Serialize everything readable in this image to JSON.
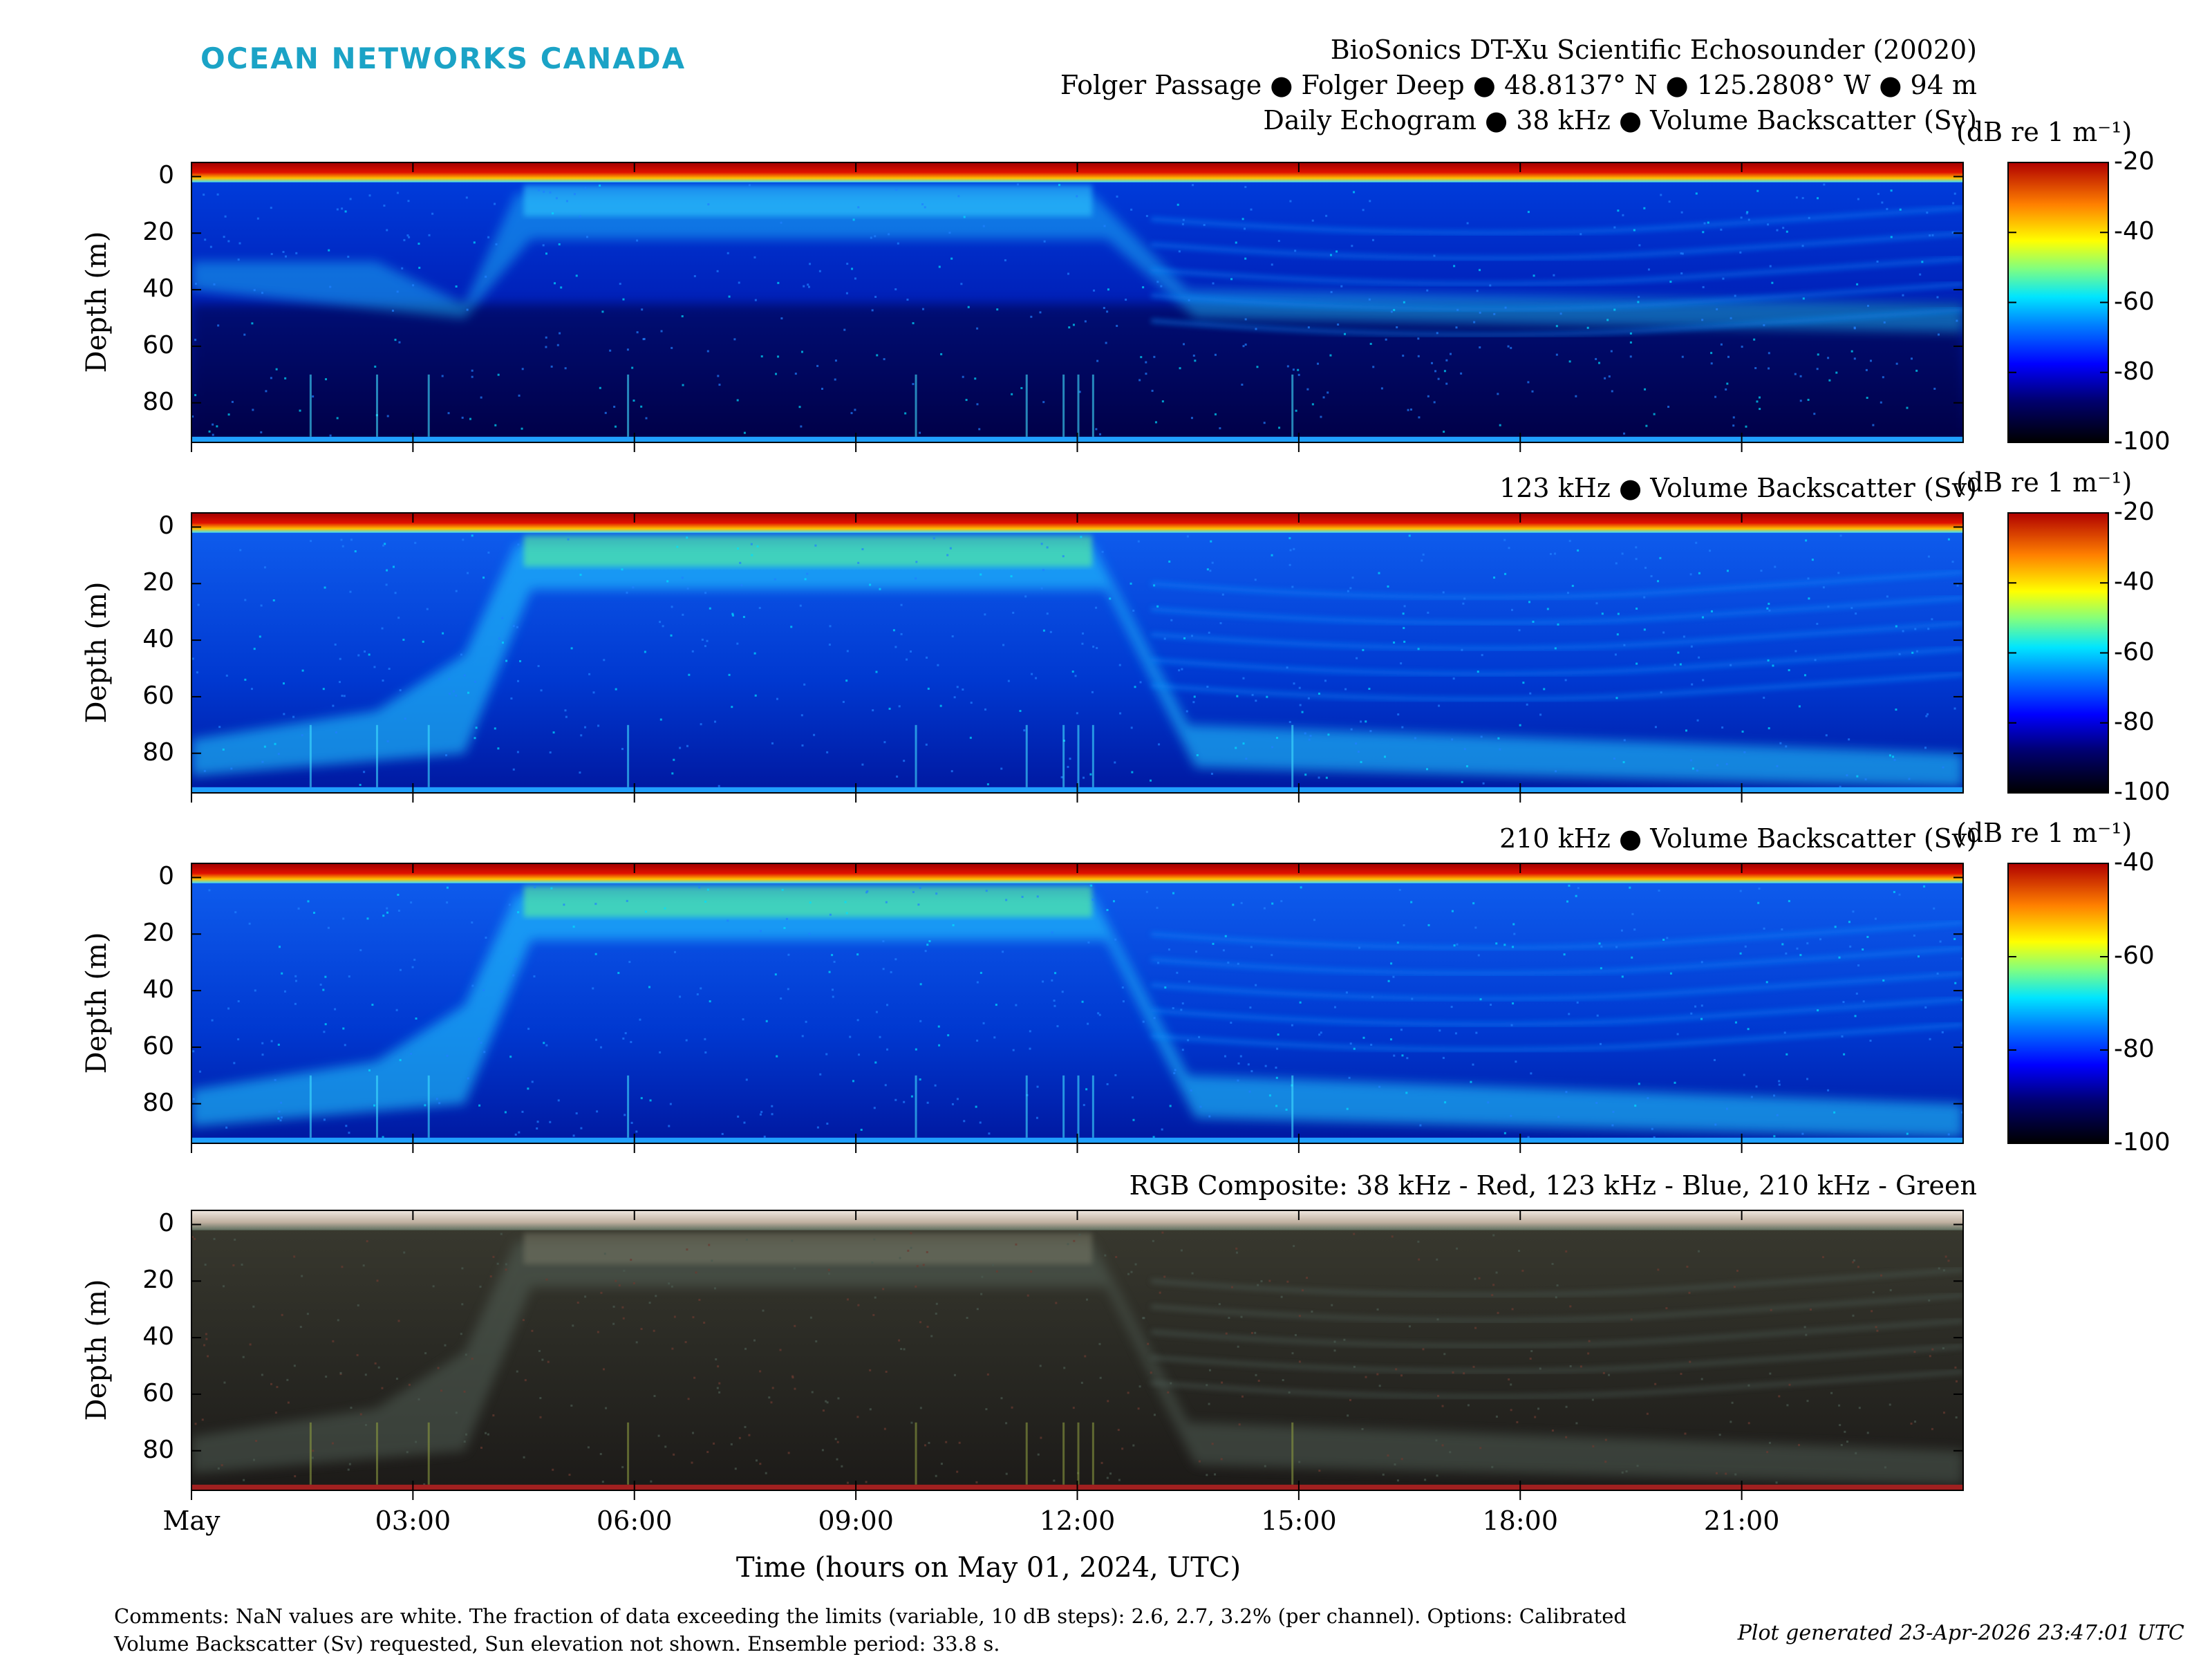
{
  "logo": "OCEAN NETWORKS CANADA",
  "header": {
    "line1": "BioSonics DT-Xu Scientific Echosounder (20020)",
    "line2": "Folger Passage ● Folger Deep ● 48.8137° N ● 125.2808° W ● 94 m",
    "line3": "Daily Echogram ● 38 kHz ● Volume Backscatter (Sv)"
  },
  "chart_data": [
    {
      "type": "heatmap",
      "title": "Daily Echogram ● 38 kHz ● Volume Backscatter (Sv)",
      "ylabel": "Depth (m)",
      "ylim": [
        94,
        -5
      ],
      "y_ticks": [
        0,
        20,
        40,
        60,
        80
      ],
      "colorbar_label": "(dB re 1 m⁻¹)",
      "colorbar_range": [
        -100,
        -20
      ],
      "colorbar_ticks": [
        "-20",
        "-40",
        "-60",
        "-80",
        "-100"
      ]
    },
    {
      "type": "heatmap",
      "title": "123 kHz ● Volume Backscatter (Sv)",
      "ylabel": "Depth (m)",
      "ylim": [
        94,
        -5
      ],
      "y_ticks": [
        0,
        20,
        40,
        60,
        80
      ],
      "colorbar_label": "(dB re 1 m⁻¹)",
      "colorbar_range": [
        -100,
        -20
      ],
      "colorbar_ticks": [
        "-20",
        "-40",
        "-60",
        "-80",
        "-100"
      ]
    },
    {
      "type": "heatmap",
      "title": "210 kHz ● Volume Backscatter (Sv)",
      "ylabel": "Depth (m)",
      "ylim": [
        94,
        -5
      ],
      "y_ticks": [
        0,
        20,
        40,
        60,
        80
      ],
      "colorbar_label": "(dB re 1 m⁻¹)",
      "colorbar_range": [
        -100,
        -40
      ],
      "colorbar_ticks": [
        "-40",
        "-60",
        "-80",
        "-100"
      ]
    },
    {
      "type": "heatmap",
      "title": "RGB Composite: 38 kHz - Red, 123 kHz - Blue, 210 kHz - Green",
      "ylabel": "Depth (m)",
      "ylim": [
        94,
        -5
      ],
      "y_ticks": [
        0,
        20,
        40,
        60,
        80
      ]
    }
  ],
  "x_axis": {
    "label": "Time (hours on May 01, 2024, UTC)",
    "range_hours": [
      0,
      24
    ],
    "ticks": [
      {
        "h": 0,
        "label": "May"
      },
      {
        "h": 3,
        "label": "03:00"
      },
      {
        "h": 6,
        "label": "06:00"
      },
      {
        "h": 9,
        "label": "09:00"
      },
      {
        "h": 12,
        "label": "12:00"
      },
      {
        "h": 15,
        "label": "15:00"
      },
      {
        "h": 18,
        "label": "18:00"
      },
      {
        "h": 21,
        "label": "21:00"
      }
    ]
  },
  "comments": "Comments: NaN values are white. The fraction of data exceeding the limits (variable, 10 dB steps): 2.6, 2.7, 3.2% (per channel). Options: Calibrated Volume Backscatter (Sv) requested, Sun elevation not shown. Ensemble period: 33.8 s.",
  "generated": "Plot generated 23-Apr-2026 23:47:01 UTC"
}
